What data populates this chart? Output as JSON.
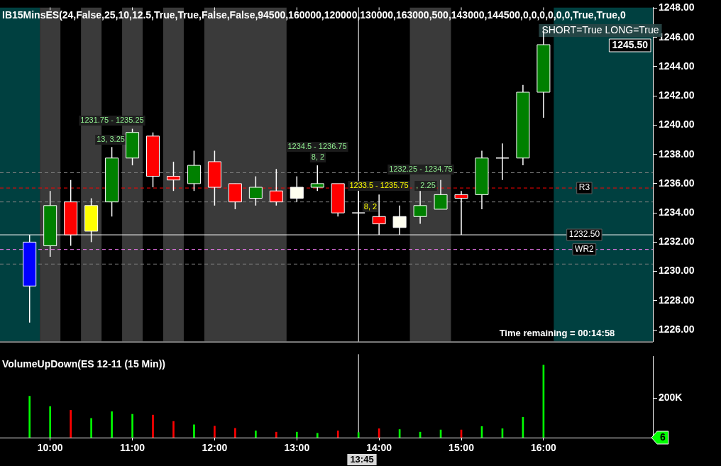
{
  "chart_data": [
    {
      "type": "candlestick",
      "title": "IB15MinsES(24,False,25,10,12.5,True,True,False,False,94500,160000,120000,130000,163000,500,143000,144500,0,0,0,0,0,0,True,True,0",
      "x": [
        9.75,
        10,
        10.25,
        10.5,
        10.75,
        11,
        11.25,
        11.5,
        11.75,
        12,
        12.25,
        12.5,
        12.75,
        13,
        13.25,
        13.5,
        13.75,
        14,
        14.25,
        14.5,
        14.75,
        15,
        15.25,
        15.5,
        15.75,
        16
      ],
      "ohlc": [
        [
          1232,
          1232.5,
          1226.5,
          1229
        ],
        [
          1231.75,
          1235.5,
          1231,
          1234.5
        ],
        [
          1234.75,
          1236.25,
          1231.75,
          1232.5
        ],
        [
          1232.75,
          1235,
          1232,
          1234.5
        ],
        [
          1234.75,
          1238.5,
          1233.75,
          1237.75
        ],
        [
          1237.75,
          1239.75,
          1237.25,
          1239.5
        ],
        [
          1239.25,
          1239.5,
          1235.75,
          1236.5
        ],
        [
          1236.5,
          1237.5,
          1235.5,
          1236.25
        ],
        [
          1236,
          1238.25,
          1235.5,
          1237.25
        ],
        [
          1237.5,
          1238.25,
          1234.5,
          1235.75
        ],
        [
          1236,
          1236,
          1234.25,
          1234.75
        ],
        [
          1235,
          1236.5,
          1234.5,
          1235.75
        ],
        [
          1235.5,
          1237,
          1234.5,
          1234.75
        ],
        [
          1235,
          1236.5,
          1234.75,
          1235.75
        ],
        [
          1235.75,
          1237.25,
          1235.5,
          1236
        ],
        [
          1236,
          1236,
          1233.75,
          1234
        ],
        [
          1234,
          1235.5,
          1232.5,
          1234
        ],
        [
          1233.75,
          1235.25,
          1232.5,
          1233.25
        ],
        [
          1233,
          1234.5,
          1232.5,
          1233.75
        ],
        [
          1233.75,
          1235.5,
          1233.25,
          1234.5
        ],
        [
          1234.25,
          1236.25,
          1234.25,
          1235.25
        ],
        [
          1235.25,
          1235.5,
          1232.5,
          1235
        ],
        [
          1235.25,
          1238.25,
          1234.25,
          1237.75
        ],
        [
          1237.75,
          1238.75,
          1236.25,
          1237.75
        ],
        [
          1237.75,
          1242.75,
          1237.25,
          1242.25
        ],
        [
          1242.25,
          1246.5,
          1240.5,
          1245.5
        ]
      ],
      "colors": [
        "#0000ff",
        "#008000",
        "#ff0000",
        "#ffff00",
        "#008000",
        "#008000",
        "#ff0000",
        "#ff0000",
        "#008000",
        "#ff0000",
        "#ff0000",
        "#008000",
        "#ff0000",
        "#fffff0",
        "#008000",
        "#ff0000",
        "#ffffff",
        "#ff0000",
        "#fffff0",
        "#008000",
        "#008000",
        "#ff0000",
        "#008000",
        "#ffffff",
        "#008000",
        "#008000"
      ],
      "xlim": [
        9.39,
        17.33
      ],
      "xticks": [
        10,
        11,
        12,
        13,
        14,
        15,
        16
      ],
      "ylim": [
        1225.2,
        1248.05
      ],
      "yticks": [
        {
          "value": 1226,
          "label": "1226.00"
        },
        {
          "value": 1228,
          "label": "1228.00"
        },
        {
          "value": 1230,
          "label": "1230.00"
        },
        {
          "value": 1232,
          "label": "1232.00"
        },
        {
          "value": 1234,
          "label": "1234.00"
        },
        {
          "value": 1236,
          "label": "1236.00"
        },
        {
          "value": 1238,
          "label": "1238.00"
        },
        {
          "value": 1240,
          "label": "1240.00"
        },
        {
          "value": 1242,
          "label": "1242.00"
        },
        {
          "value": 1244,
          "label": "1244.00"
        },
        {
          "value": 1246,
          "label": "1246.00"
        },
        {
          "value": 1248,
          "label": "1248.00"
        }
      ],
      "tick_labels": "y",
      "bands": [
        {
          "axis": "x",
          "from": 9.39,
          "to": 9.875,
          "color": "#004040"
        },
        {
          "axis": "x",
          "from": 9.875,
          "to": 10.125,
          "color": "#3a3a3a"
        },
        {
          "axis": "x",
          "from": 10.375,
          "to": 10.625,
          "color": "#3a3a3a"
        },
        {
          "axis": "x",
          "from": 10.875,
          "to": 11.125,
          "color": "#3a3a3a"
        },
        {
          "axis": "x",
          "from": 11.375,
          "to": 11.625,
          "color": "#3a3a3a"
        },
        {
          "axis": "x",
          "from": 11.875,
          "to": 12.875,
          "color": "#3a3a3a"
        },
        {
          "axis": "x",
          "from": 14.375,
          "to": 14.875,
          "color": "#3a3a3a"
        },
        {
          "axis": "x",
          "from": 16.125,
          "to": 17.33,
          "color": "#004040"
        }
      ],
      "ref_lines": [
        {
          "axis": "y",
          "value": 1236.75,
          "color": "#808080",
          "line_style": "dashed"
        },
        {
          "axis": "y",
          "value": 1235.7,
          "color": "#ff0000",
          "line_style": "dashed",
          "label": "R3"
        },
        {
          "axis": "y",
          "value": 1234.75,
          "color": "#808080",
          "line_style": "dashed"
        },
        {
          "axis": "y",
          "value": 1232.5,
          "color": "#ffffff",
          "line_style": "solid",
          "label": "1232.50"
        },
        {
          "axis": "y",
          "value": 1231.5,
          "color": "#ff80ff",
          "line_style": "dashed",
          "label": "WR2"
        },
        {
          "axis": "y",
          "value": 1230.5,
          "color": "#808080",
          "line_style": "dashed"
        },
        {
          "axis": "x",
          "value": 13.75,
          "color": "#ffffff",
          "line_style": "solid"
        }
      ],
      "annotations": [
        "1231.75 - 1235.25",
        "13, 3.25",
        "1234.5 - 1236.75",
        "8, 2",
        "1232.25 - 1234.75",
        "1233.5 - 1235.75",
        ", 2.25",
        "8, 2",
        "SHORT=True LONG=True",
        "Time remaining = 00:14:58",
        "1245.50"
      ]
    },
    {
      "type": "bar",
      "title": "VolumeUpDown(ES 12-11 (15 Min))",
      "x": [
        9.75,
        10,
        10.25,
        10.5,
        10.75,
        11,
        11.25,
        11.5,
        11.75,
        12,
        12.25,
        12.5,
        12.75,
        13,
        13.25,
        13.5,
        13.75,
        14,
        14.25,
        14.5,
        14.75,
        15,
        15.25,
        15.5,
        15.75,
        16
      ],
      "values": [
        209000,
        157000,
        138000,
        97000,
        131000,
        118000,
        114000,
        82000,
        65000,
        58000,
        47000,
        34000,
        28000,
        28000,
        22000,
        34000,
        26000,
        45000,
        41000,
        28000,
        39000,
        39000,
        56000,
        45000,
        103000,
        366000
      ],
      "colors": [
        "#00ff00",
        "#00ff00",
        "#ff0000",
        "#00ff00",
        "#00ff00",
        "#00ff00",
        "#ff0000",
        "#ff0000",
        "#00ff00",
        "#ff0000",
        "#ff0000",
        "#00ff00",
        "#ff0000",
        "#00ff00",
        "#00ff00",
        "#ff0000",
        "#00ff00",
        "#ff0000",
        "#00ff00",
        "#00ff00",
        "#00ff00",
        "#ff0000",
        "#00ff00",
        "#00ff00",
        "#00ff00",
        "#00ff00"
      ],
      "xlim": [
        9.39,
        17.33
      ],
      "xticks": [
        {
          "value": 10,
          "label": "10:00"
        },
        {
          "value": 11,
          "label": "11:00"
        },
        {
          "value": 12,
          "label": "12:00"
        },
        {
          "value": 13,
          "label": "13:00"
        },
        {
          "value": 14,
          "label": "14:00"
        },
        {
          "value": 15,
          "label": "15:00"
        },
        {
          "value": 16,
          "label": "16:00"
        }
      ],
      "ylim": [
        0,
        410000
      ],
      "yticks": [
        {
          "value": 0,
          "label": null
        },
        {
          "value": 200000,
          "label": "200K"
        }
      ],
      "ref_lines": [
        {
          "axis": "x",
          "value": 13.75,
          "color": "#ffffff",
          "line_style": "solid"
        }
      ],
      "annotations": [
        "6",
        "13:45"
      ]
    }
  ]
}
